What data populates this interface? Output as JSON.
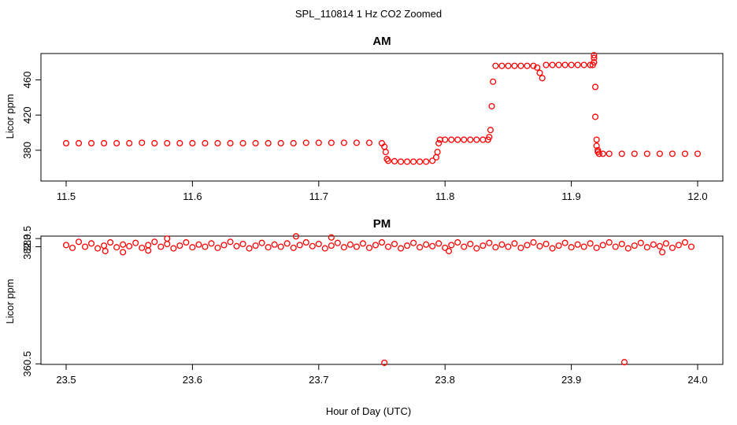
{
  "chart_data": {
    "title": "SPL_110814  1 Hz CO2 Zoomed",
    "xlabel": "Hour of Day (UTC)",
    "panels": [
      {
        "type": "scatter",
        "title": "AM",
        "ylabel": "Licor ppm",
        "xlim": [
          11.5,
          12.0
        ],
        "ylim": [
          345,
          490
        ],
        "xticks": [
          11.5,
          11.6,
          11.7,
          11.8,
          11.9,
          12.0
        ],
        "xtick_labels": [
          "11.5",
          "11.6",
          "11.7",
          "11.8",
          "11.9",
          "12.0"
        ],
        "yticks": [
          380,
          420,
          460
        ],
        "ytick_labels": [
          "380",
          "420",
          "460"
        ],
        "series": [
          {
            "name": "Licor CO2",
            "color": "#ff0000",
            "marker": "circle-open",
            "x": [
              11.5,
              11.51,
              11.52,
              11.53,
              11.54,
              11.55,
              11.56,
              11.57,
              11.58,
              11.59,
              11.6,
              11.61,
              11.62,
              11.63,
              11.64,
              11.65,
              11.66,
              11.67,
              11.68,
              11.69,
              11.7,
              11.71,
              11.72,
              11.73,
              11.74,
              11.75,
              11.752,
              11.753,
              11.754,
              11.755,
              11.76,
              11.765,
              11.77,
              11.775,
              11.78,
              11.785,
              11.79,
              11.793,
              11.794,
              11.795,
              11.796,
              11.8,
              11.805,
              11.81,
              11.815,
              11.82,
              11.825,
              11.83,
              11.834,
              11.835,
              11.836,
              11.837,
              11.838,
              11.84,
              11.845,
              11.85,
              11.855,
              11.86,
              11.865,
              11.87,
              11.873,
              11.875,
              11.877,
              11.88,
              11.885,
              11.89,
              11.895,
              11.9,
              11.905,
              11.91,
              11.915,
              11.917,
              11.918,
              11.918,
              11.918,
              11.919,
              11.919,
              11.92,
              11.92,
              11.921,
              11.921,
              11.922,
              11.925,
              11.93,
              11.94,
              11.95,
              11.96,
              11.97,
              11.98,
              11.99,
              12.0
            ],
            "y": [
              388,
              388,
              388,
              388,
              388,
              388,
              388.5,
              388,
              388,
              388,
              388,
              388,
              388,
              388,
              388,
              388,
              388,
              388,
              388,
              388.5,
              388.5,
              388.5,
              388.5,
              388.5,
              388.5,
              388,
              384,
              378,
              370,
              368,
              367.5,
              367,
              367,
              367,
              367,
              367,
              368,
              372,
              378,
              388,
              392,
              392,
              392,
              392,
              392,
              392,
              392,
              392,
              392,
              395,
              403,
              430,
              458,
              476,
              476,
              476,
              476,
              476,
              476,
              476,
              474,
              468,
              462,
              477,
              477,
              477,
              477,
              477,
              477,
              477,
              477,
              477,
              488,
              485,
              480,
              452,
              418,
              392,
              385,
              380,
              378,
              376,
              376,
              376,
              376,
              376,
              376,
              376,
              376,
              376,
              376
            ]
          }
        ]
      },
      {
        "type": "scatter",
        "title": "PM",
        "ylabel": "Licor ppm",
        "xlim": [
          23.5,
          24.0
        ],
        "ylim": [
          360.4,
          383.95
        ],
        "xticks": [
          23.5,
          23.6,
          23.7,
          23.8,
          23.9,
          24.0
        ],
        "xtick_labels": [
          "23.5",
          "23.6",
          "23.7",
          "23.8",
          "23.9",
          "24.0"
        ],
        "yticks": [
          360.5,
          382.0,
          383.5
        ],
        "ytick_labels": [
          "360.5",
          "382.0",
          "383.5"
        ],
        "series": [
          {
            "name": "Licor CO2",
            "color": "#ff0000",
            "marker": "circle-open",
            "x": [
              23.5,
              23.505,
              23.51,
              23.515,
              23.52,
              23.525,
              23.53,
              23.535,
              23.54,
              23.545,
              23.55,
              23.555,
              23.56,
              23.565,
              23.57,
              23.575,
              23.58,
              23.585,
              23.59,
              23.595,
              23.6,
              23.605,
              23.61,
              23.615,
              23.62,
              23.625,
              23.63,
              23.635,
              23.64,
              23.645,
              23.65,
              23.655,
              23.66,
              23.665,
              23.67,
              23.675,
              23.68,
              23.685,
              23.69,
              23.695,
              23.7,
              23.705,
              23.71,
              23.715,
              23.72,
              23.725,
              23.73,
              23.735,
              23.74,
              23.745,
              23.75,
              23.755,
              23.76,
              23.765,
              23.77,
              23.775,
              23.78,
              23.785,
              23.79,
              23.795,
              23.8,
              23.805,
              23.81,
              23.815,
              23.82,
              23.825,
              23.83,
              23.835,
              23.84,
              23.845,
              23.85,
              23.855,
              23.86,
              23.865,
              23.87,
              23.875,
              23.88,
              23.885,
              23.89,
              23.895,
              23.9,
              23.905,
              23.91,
              23.915,
              23.92,
              23.925,
              23.93,
              23.935,
              23.94,
              23.945,
              23.95,
              23.955,
              23.96,
              23.965,
              23.97,
              23.975,
              23.98,
              23.985,
              23.99,
              23.995,
              23.531,
              23.545,
              23.565,
              23.58,
              23.682,
              23.71,
              23.752,
              23.803,
              23.942,
              23.972
            ],
            "y": [
              382.3,
              381.8,
              382.9,
              382.0,
              382.6,
              381.7,
              382.2,
              382.8,
              381.9,
              382.4,
              382.1,
              382.7,
              381.8,
              382.3,
              382.9,
              382.0,
              382.5,
              381.7,
              382.2,
              382.8,
              381.9,
              382.4,
              382.0,
              382.6,
              381.8,
              382.3,
              382.9,
              382.1,
              382.5,
              381.7,
              382.2,
              382.7,
              381.9,
              382.4,
              382.0,
              382.6,
              381.8,
              382.3,
              382.8,
              382.1,
              382.5,
              381.7,
              382.2,
              382.7,
              381.9,
              382.4,
              382.0,
              382.6,
              381.8,
              382.3,
              382.8,
              382.0,
              382.5,
              381.7,
              382.2,
              382.7,
              381.9,
              382.4,
              382.1,
              382.6,
              381.8,
              382.3,
              382.8,
              382.0,
              382.5,
              381.7,
              382.2,
              382.7,
              381.9,
              382.4,
              382.0,
              382.6,
              381.8,
              382.3,
              382.8,
              382.1,
              382.5,
              381.7,
              382.2,
              382.7,
              381.9,
              382.4,
              382.0,
              382.6,
              381.8,
              382.3,
              382.8,
              382.0,
              382.5,
              381.7,
              382.2,
              382.7,
              381.9,
              382.4,
              382.1,
              382.6,
              381.8,
              382.3,
              382.8,
              382.0,
              381.2,
              381.0,
              381.3,
              383.5,
              383.9,
              383.7,
              360.7,
              381.2,
              360.8,
              381.0
            ]
          }
        ]
      }
    ]
  }
}
